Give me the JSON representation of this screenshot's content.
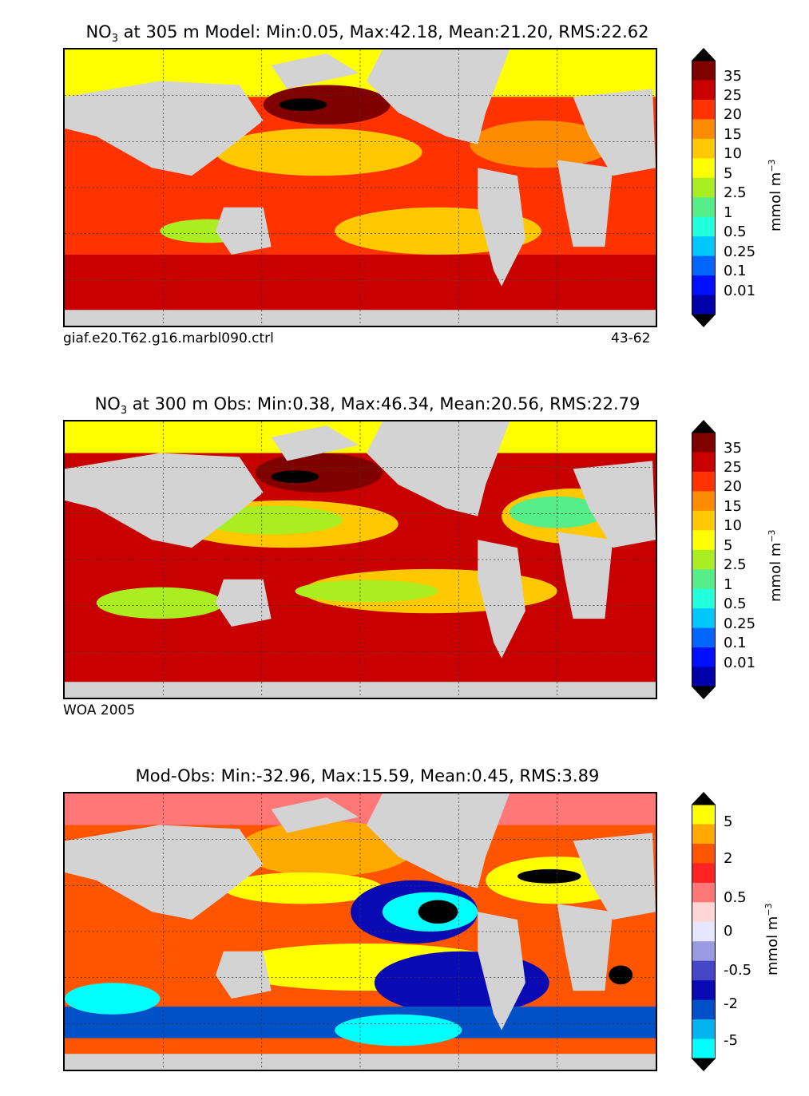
{
  "panels": [
    {
      "title_prefix": "NO",
      "title_sub": "3",
      "title_rest": " at 305 m Model: Min:0.05, Max:42.18, Mean:21.20, RMS:22.62",
      "caption_left": "giaf.e20.T62.g16.marbl090.ctrl",
      "caption_right": "43-62",
      "colorbar_ticks": [
        "35",
        "25",
        "20",
        "15",
        "10",
        "5",
        "2.5",
        "1",
        "0.5",
        "0.25",
        "0.1",
        "0.01"
      ],
      "colorbar_colors": [
        "#800000",
        "#c80000",
        "#ff3200",
        "#ff8c00",
        "#ffc800",
        "#ffff00",
        "#aaee22",
        "#55ee88",
        "#22ffdd",
        "#00c8ff",
        "#0066ff",
        "#0010ff",
        "#0000aa"
      ],
      "unit": "mmol m",
      "unit_sup": "−3"
    },
    {
      "title_prefix": "NO",
      "title_sub": "3",
      "title_rest": " at 300 m Obs: Min:0.38, Max:46.34, Mean:20.56, RMS:22.79",
      "caption_left": "WOA 2005",
      "caption_right": "",
      "colorbar_ticks": [
        "35",
        "25",
        "20",
        "15",
        "10",
        "5",
        "2.5",
        "1",
        "0.5",
        "0.25",
        "0.1",
        "0.01"
      ],
      "colorbar_colors": [
        "#800000",
        "#c80000",
        "#ff3200",
        "#ff8c00",
        "#ffc800",
        "#ffff00",
        "#aaee22",
        "#55ee88",
        "#22ffdd",
        "#00c8ff",
        "#0066ff",
        "#0010ff",
        "#0000aa"
      ],
      "unit": "mmol m",
      "unit_sup": "−3"
    },
    {
      "title_prefix": "",
      "title_sub": "",
      "title_rest": "Mod-Obs: Min:-32.96, Max:15.59, Mean:0.45, RMS:3.89",
      "caption_left": "",
      "caption_right": "",
      "colorbar_ticks": [
        "5",
        "2",
        "0.5",
        "0",
        "-0.5",
        "-2",
        "-5"
      ],
      "colorbar_colors": [
        "#ffff00",
        "#ffaa00",
        "#ff5500",
        "#ff2222",
        "#ff7777",
        "#ffd6d6",
        "#e6e6ff",
        "#9a9ae0",
        "#4646c8",
        "#0a0ab4",
        "#0050c8",
        "#00b4f0",
        "#00ffff"
      ],
      "unit": "mmol m",
      "unit_sup": "−3"
    }
  ],
  "colors": {
    "land": "#d3d3d3",
    "ice_missing": "#ffffff",
    "arrow_dark": "#000000"
  }
}
